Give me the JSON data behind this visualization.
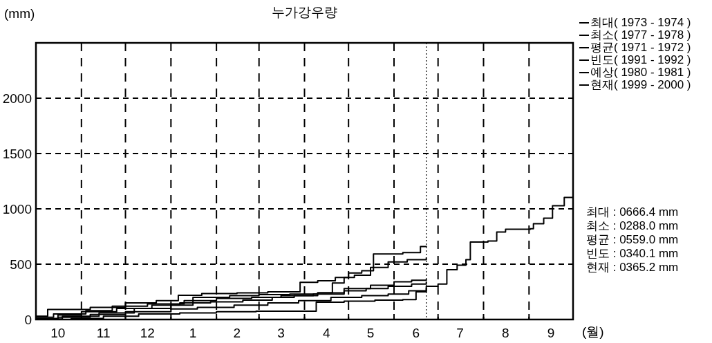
{
  "chart_data": {
    "type": "step",
    "title": "누가강우량",
    "ylabel": "(mm)",
    "xlabel": "(월)",
    "xlim": [
      "1999-10-01",
      "2000-10-01"
    ],
    "xticks": [
      {
        "value": "1999-10-16",
        "label": "10"
      },
      {
        "value": "1999-11-01",
        "label": null
      },
      {
        "value": "1999-11-16",
        "label": "11"
      },
      {
        "value": "1999-12-01",
        "label": null
      },
      {
        "value": "1999-12-16",
        "label": "12"
      },
      {
        "value": "2000-01-01",
        "label": null
      },
      {
        "value": "2000-01-16",
        "label": "1"
      },
      {
        "value": "2000-02-01",
        "label": null
      },
      {
        "value": "2000-02-15",
        "label": "2"
      },
      {
        "value": "2000-03-01",
        "label": null
      },
      {
        "value": "2000-03-16",
        "label": "3"
      },
      {
        "value": "2000-04-01",
        "label": null
      },
      {
        "value": "2000-04-16",
        "label": "4"
      },
      {
        "value": "2000-05-01",
        "label": null
      },
      {
        "value": "2000-05-16",
        "label": "5"
      },
      {
        "value": "2000-06-01",
        "label": null
      },
      {
        "value": "2000-06-16",
        "label": "6"
      },
      {
        "value": "2000-07-01",
        "label": null
      },
      {
        "value": "2000-07-16",
        "label": "7"
      },
      {
        "value": "2000-08-01",
        "label": null
      },
      {
        "value": "2000-08-16",
        "label": "8"
      },
      {
        "value": "2000-09-01",
        "label": null
      },
      {
        "value": "2000-09-16",
        "label": "9"
      }
    ],
    "ylim": [
      0,
      2500
    ],
    "yticks": [
      0,
      500,
      1000,
      1500,
      2000
    ],
    "grid": true,
    "legend": "right",
    "line_style": "solid",
    "ref_lines": [
      {
        "axis": "x",
        "value": "2000-06-23",
        "line_style": "dotted",
        "color": "#000000"
      }
    ],
    "series": [
      {
        "name": "최대( 1973 - 1974 )",
        "color": "#000000",
        "x": [
          "1999-10-01",
          "1999-10-09",
          "1999-11-07",
          "1999-12-01",
          "1999-12-22",
          "2000-01-06",
          "2000-01-22",
          "2000-02-15",
          "2000-03-07",
          "2000-03-29",
          "2000-04-10",
          "2000-04-22",
          "2000-05-01",
          "2000-05-10",
          "2000-05-18",
          "2000-06-07",
          "2000-06-19",
          "2000-06-23"
        ],
        "values": [
          30,
          90,
          110,
          150,
          170,
          218,
          235,
          240,
          250,
          336,
          350,
          380,
          420,
          440,
          592,
          604,
          660,
          666
        ]
      },
      {
        "name": "최소( 1977 - 1978 )",
        "color": "#000000",
        "x": [
          "1999-10-01",
          "1999-10-25",
          "1999-11-16",
          "1999-12-10",
          "2000-01-07",
          "2000-02-01",
          "2000-02-28",
          "2000-04-09",
          "2000-04-28",
          "2000-05-19",
          "2000-06-07",
          "2000-06-16",
          "2000-06-23"
        ],
        "values": [
          0,
          10,
          30,
          50,
          60,
          70,
          75,
          156,
          165,
          175,
          180,
          250,
          288
        ]
      },
      {
        "name": "평균( 1971 - 1972 )",
        "color": "#000000",
        "x": [
          "1999-10-01",
          "1999-10-16",
          "1999-11-01",
          "1999-11-25",
          "1999-12-19",
          "2000-01-07",
          "2000-01-28",
          "2000-02-19",
          "2000-03-10",
          "2000-03-25",
          "2000-04-10",
          "2000-04-20",
          "2000-04-28",
          "2000-05-05",
          "2000-05-16",
          "2000-05-28",
          "2000-06-10",
          "2000-06-23"
        ],
        "values": [
          10,
          40,
          70,
          100,
          130,
          150,
          160,
          175,
          200,
          215,
          240,
          330,
          380,
          400,
          470,
          520,
          540,
          559
        ]
      },
      {
        "name": "빈도( 1991 - 1992 )",
        "color": "#000000",
        "x": [
          "1999-10-01",
          "1999-10-13",
          "1999-11-04",
          "1999-11-22",
          "1999-12-16",
          "2000-01-10",
          "2000-02-01",
          "2000-02-25",
          "2000-03-16",
          "2000-04-07",
          "2000-04-28",
          "2000-05-13",
          "2000-05-28",
          "2000-06-13",
          "2000-06-23"
        ],
        "values": [
          20,
          50,
          80,
          120,
          140,
          170,
          190,
          200,
          215,
          230,
          260,
          280,
          300,
          320,
          340
        ]
      },
      {
        "name": "예상( 1980 - 1981 )",
        "color": "#000000",
        "x": [
          "1999-10-01",
          "1999-10-16",
          "1999-11-07",
          "1999-12-01",
          "2000-01-01",
          "2000-01-19",
          "2000-02-13",
          "2000-03-07",
          "2000-03-28",
          "2000-04-19",
          "2000-05-10",
          "2000-05-28",
          "2000-06-11",
          "2000-06-23",
          "2000-07-01",
          "2000-07-07",
          "2000-07-14",
          "2000-07-20",
          "2000-07-23",
          "2000-08-04",
          "2000-08-10",
          "2000-08-16",
          "2000-09-02",
          "2000-09-04",
          "2000-09-11",
          "2000-09-17",
          "2000-09-22",
          "2000-09-25",
          "2000-10-01"
        ],
        "values": [
          0,
          20,
          45,
          70,
          95,
          110,
          130,
          150,
          170,
          200,
          215,
          230,
          260,
          300,
          320,
          450,
          490,
          540,
          700,
          710,
          790,
          816,
          820,
          866,
          916,
          1028,
          1028,
          1103,
          1103
        ]
      },
      {
        "name": "현재( 1999 - 2000 )",
        "color": "#000000",
        "x": [
          "1999-10-01",
          "1999-10-19",
          "1999-11-13",
          "1999-12-07",
          "2000-01-01",
          "2000-01-16",
          "2000-02-10",
          "2000-03-01",
          "2000-03-22",
          "2000-04-10",
          "2000-04-28",
          "2000-05-16",
          "2000-06-01",
          "2000-06-13",
          "2000-06-23"
        ],
        "values": [
          5,
          30,
          60,
          100,
          130,
          200,
          215,
          225,
          230,
          240,
          280,
          310,
          340,
          355,
          365
        ]
      }
    ],
    "annotations": [
      "최대 : 0666.4 mm",
      "최소 : 0288.0 mm",
      "평균 : 0559.0 mm",
      "빈도 : 0340.1 mm",
      "현재 : 0365.2 mm"
    ]
  }
}
